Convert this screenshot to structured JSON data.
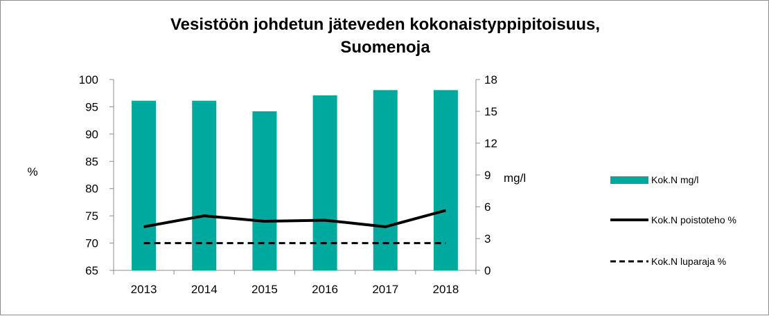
{
  "chart_data": {
    "type": "bar",
    "title_line1": "Vesistöön johdetun jäteveden kokonaistyppipitoisuus,",
    "title_line2": "Suomenoja",
    "categories": [
      "2013",
      "2014",
      "2015",
      "2016",
      "2017",
      "2018"
    ],
    "y_left": {
      "label": "%",
      "ylim": [
        65,
        100
      ],
      "ticks": [
        65,
        70,
        75,
        80,
        85,
        90,
        95,
        100
      ]
    },
    "y_right": {
      "label": "mg/l",
      "ylim": [
        0,
        18
      ],
      "ticks": [
        0,
        3,
        6,
        9,
        12,
        15,
        18
      ]
    },
    "series": [
      {
        "name": "Kok.N mg/l",
        "type": "bar",
        "axis": "right",
        "color": "#00A99D",
        "values": [
          16,
          16,
          15,
          16.5,
          17,
          17
        ]
      },
      {
        "name": "Kok.N poistoteho %",
        "type": "line",
        "axis": "left",
        "color": "#000000",
        "dash": "solid",
        "values": [
          73,
          75,
          74,
          74.2,
          73,
          76
        ]
      },
      {
        "name": "Kok.N luparaja %",
        "type": "line",
        "axis": "left",
        "color": "#000000",
        "dash": "dashed",
        "values": [
          70,
          70,
          70,
          70,
          70,
          70
        ]
      }
    ],
    "grid": false,
    "legend_position": "right"
  }
}
